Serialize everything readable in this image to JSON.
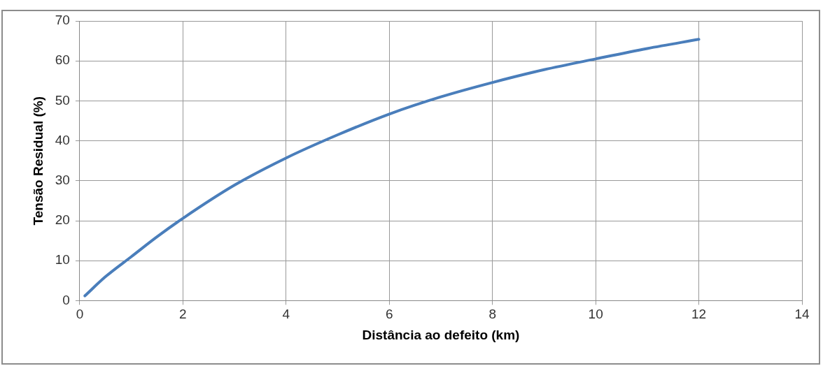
{
  "chart_data": {
    "type": "line",
    "xlabel": "Distância ao defeito (km)",
    "ylabel": "Tensão Residual (%)",
    "series": [
      {
        "color": "#4a7ebb",
        "x": [
          0.1,
          0.5,
          1,
          1.5,
          2,
          3,
          4,
          5,
          6,
          7,
          8,
          9,
          10,
          11,
          12
        ],
        "values": [
          1.2,
          6,
          11,
          16,
          20.6,
          28.9,
          35.7,
          41.5,
          46.7,
          51,
          54.6,
          57.8,
          60.5,
          63.1,
          65.4
        ]
      }
    ],
    "xlim": [
      0,
      14
    ],
    "xticks": [
      0,
      2,
      4,
      6,
      8,
      10,
      12,
      14
    ],
    "ylim": [
      0,
      70
    ],
    "yticks": [
      0,
      10,
      20,
      30,
      40,
      50,
      60,
      70
    ],
    "grid": true,
    "legend": false,
    "marker": "none",
    "line_style": "solid"
  }
}
